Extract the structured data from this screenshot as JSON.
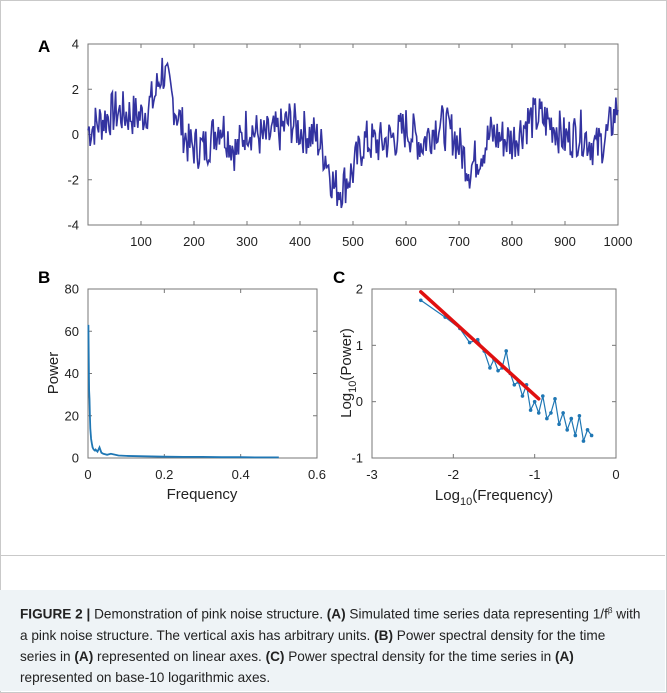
{
  "chart_data": [
    {
      "panel": "A",
      "type": "line",
      "x_ticks": [
        100,
        200,
        300,
        400,
        500,
        600,
        700,
        800,
        900,
        1000
      ],
      "y_ticks": [
        -4,
        -2,
        0,
        2,
        4
      ],
      "xlim": [
        0,
        1000
      ],
      "ylim": [
        -4,
        4
      ],
      "color": "#3333a0",
      "series_description_values_anchor": [
        [
          0,
          0.2
        ],
        [
          25,
          0.6
        ],
        [
          50,
          1.0
        ],
        [
          75,
          0.9
        ],
        [
          100,
          0.8
        ],
        [
          125,
          1.6
        ],
        [
          140,
          2.9
        ],
        [
          160,
          1.5
        ],
        [
          190,
          -0.5
        ],
        [
          220,
          -0.6
        ],
        [
          250,
          0.5
        ],
        [
          280,
          -0.8
        ],
        [
          300,
          0.4
        ],
        [
          330,
          -0.2
        ],
        [
          360,
          0.1
        ],
        [
          380,
          0.6
        ],
        [
          400,
          0.2
        ],
        [
          430,
          -0.1
        ],
        [
          450,
          -1.0
        ],
        [
          465,
          -2.4
        ],
        [
          480,
          -2.3
        ],
        [
          500,
          -1.6
        ],
        [
          520,
          -0.3
        ],
        [
          550,
          -0.4
        ],
        [
          580,
          -0.1
        ],
        [
          600,
          0.3
        ],
        [
          630,
          -0.4
        ],
        [
          660,
          0.5
        ],
        [
          690,
          0.0
        ],
        [
          720,
          -1.5
        ],
        [
          740,
          -0.8
        ],
        [
          760,
          0.0
        ],
        [
          800,
          -0.3
        ],
        [
          830,
          0.6
        ],
        [
          850,
          0.8
        ],
        [
          880,
          0.4
        ],
        [
          900,
          -0.2
        ],
        [
          930,
          0.1
        ],
        [
          960,
          -0.6
        ],
        [
          980,
          0.0
        ],
        [
          1000,
          1.3
        ]
      ]
    },
    {
      "panel": "B",
      "type": "line",
      "xlabel": "Frequency",
      "ylabel": "Power",
      "x_ticks": [
        "0",
        "0.2",
        "0.4",
        "0.6"
      ],
      "y_ticks": [
        "0",
        "20",
        "40",
        "60",
        "80"
      ],
      "xlim": [
        0,
        0.6
      ],
      "ylim": [
        0,
        80
      ],
      "color": "#1f77b4",
      "x": [
        0.001,
        0.002,
        0.003,
        0.004,
        0.005,
        0.006,
        0.008,
        0.01,
        0.012,
        0.015,
        0.018,
        0.02,
        0.025,
        0.03,
        0.035,
        0.04,
        0.05,
        0.06,
        0.08,
        0.1,
        0.15,
        0.2,
        0.25,
        0.3,
        0.35,
        0.4,
        0.45,
        0.5
      ],
      "y": [
        63,
        45,
        32,
        28,
        20,
        14,
        9,
        7,
        5,
        4,
        3.5,
        4,
        3,
        5,
        2.5,
        2,
        1.5,
        2,
        1.2,
        1,
        0.8,
        0.6,
        0.5,
        0.5,
        0.4,
        0.4,
        0.3,
        0.3
      ]
    },
    {
      "panel": "C",
      "type": "scatter",
      "xlabel": "Log10(Frequency)",
      "ylabel": "Log10(Power)",
      "x_ticks": [
        "-3",
        "-2",
        "-1",
        "0"
      ],
      "y_ticks": [
        "-1",
        "0",
        "1",
        "2"
      ],
      "xlim": [
        -3,
        0
      ],
      "ylim": [
        -1,
        2
      ],
      "color": "#1f77b4",
      "fit_color": "#e01010",
      "fit_line": {
        "x": [
          -2.4,
          -0.95
        ],
        "y": [
          1.95,
          0.05
        ]
      },
      "x": [
        -2.4,
        -2.1,
        -1.92,
        -1.8,
        -1.7,
        -1.62,
        -1.55,
        -1.5,
        -1.45,
        -1.4,
        -1.35,
        -1.3,
        -1.25,
        -1.2,
        -1.15,
        -1.1,
        -1.05,
        -1.0,
        -0.95,
        -0.9,
        -0.85,
        -0.8,
        -0.75,
        -0.7,
        -0.65,
        -0.6,
        -0.55,
        -0.5,
        -0.45,
        -0.4,
        -0.35,
        -0.3
      ],
      "y": [
        1.8,
        1.5,
        1.3,
        1.05,
        1.1,
        0.9,
        0.6,
        0.75,
        0.55,
        0.6,
        0.9,
        0.5,
        0.3,
        0.35,
        0.1,
        0.3,
        -0.15,
        0.0,
        -0.2,
        0.1,
        -0.3,
        -0.2,
        0.05,
        -0.4,
        -0.2,
        -0.5,
        -0.3,
        -0.6,
        -0.25,
        -0.7,
        -0.5,
        -0.6
      ]
    }
  ],
  "panels": {
    "a": {
      "letter": "A"
    },
    "b": {
      "letter": "B"
    },
    "c": {
      "letter": "C"
    }
  },
  "c_labels": {
    "x_main": "Log",
    "x_sub": "10",
    "x_tail": "(Frequency)",
    "y_main": "Log",
    "y_sub": "10",
    "y_tail": "(Power)"
  },
  "caption": {
    "fig": "FIGURE 2",
    "sep": " | ",
    "lead": " Demonstration of pink noise structure. ",
    "a": "(A)",
    "t1": " Simulated time series data representing 1/f",
    "beta": "β",
    "t2": " with a pink noise structure. The vertical axis has arbitrary units. ",
    "b": "(B)",
    "t3": " Power spectral density for the time series in ",
    "a2": "(A)",
    "t4": " represented on linear axes. ",
    "c": "(C)",
    "t5": " Power spectral density for the time series in ",
    "a3": "(A)",
    "t6": " represented on base-10 logarithmic axes."
  }
}
